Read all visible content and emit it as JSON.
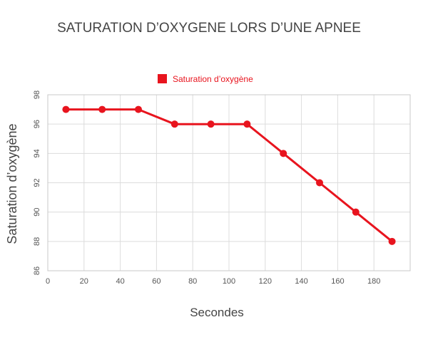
{
  "chart_data": {
    "type": "line",
    "title": "SATURATION D’OXYGENE LORS D’UNE APNEE",
    "xlabel": "Secondes",
    "ylabel": "Saturation d’oxygène",
    "xlim": [
      0,
      200
    ],
    "ylim": [
      86,
      98
    ],
    "xticks": [
      "0",
      "20",
      "40",
      "60",
      "80",
      "100",
      "120",
      "140",
      "160",
      "180"
    ],
    "yticks": [
      "86",
      "88",
      "90",
      "92",
      "94",
      "96",
      "98"
    ],
    "grid": true,
    "legend_position": "top-center",
    "series": [
      {
        "name": "Saturation d’oxygène",
        "color": "#e8141e",
        "x": [
          10,
          30,
          50,
          70,
          90,
          110,
          130,
          150,
          170,
          190
        ],
        "y": [
          97,
          97,
          97,
          96,
          96,
          96,
          94,
          92,
          90,
          88
        ]
      }
    ]
  }
}
